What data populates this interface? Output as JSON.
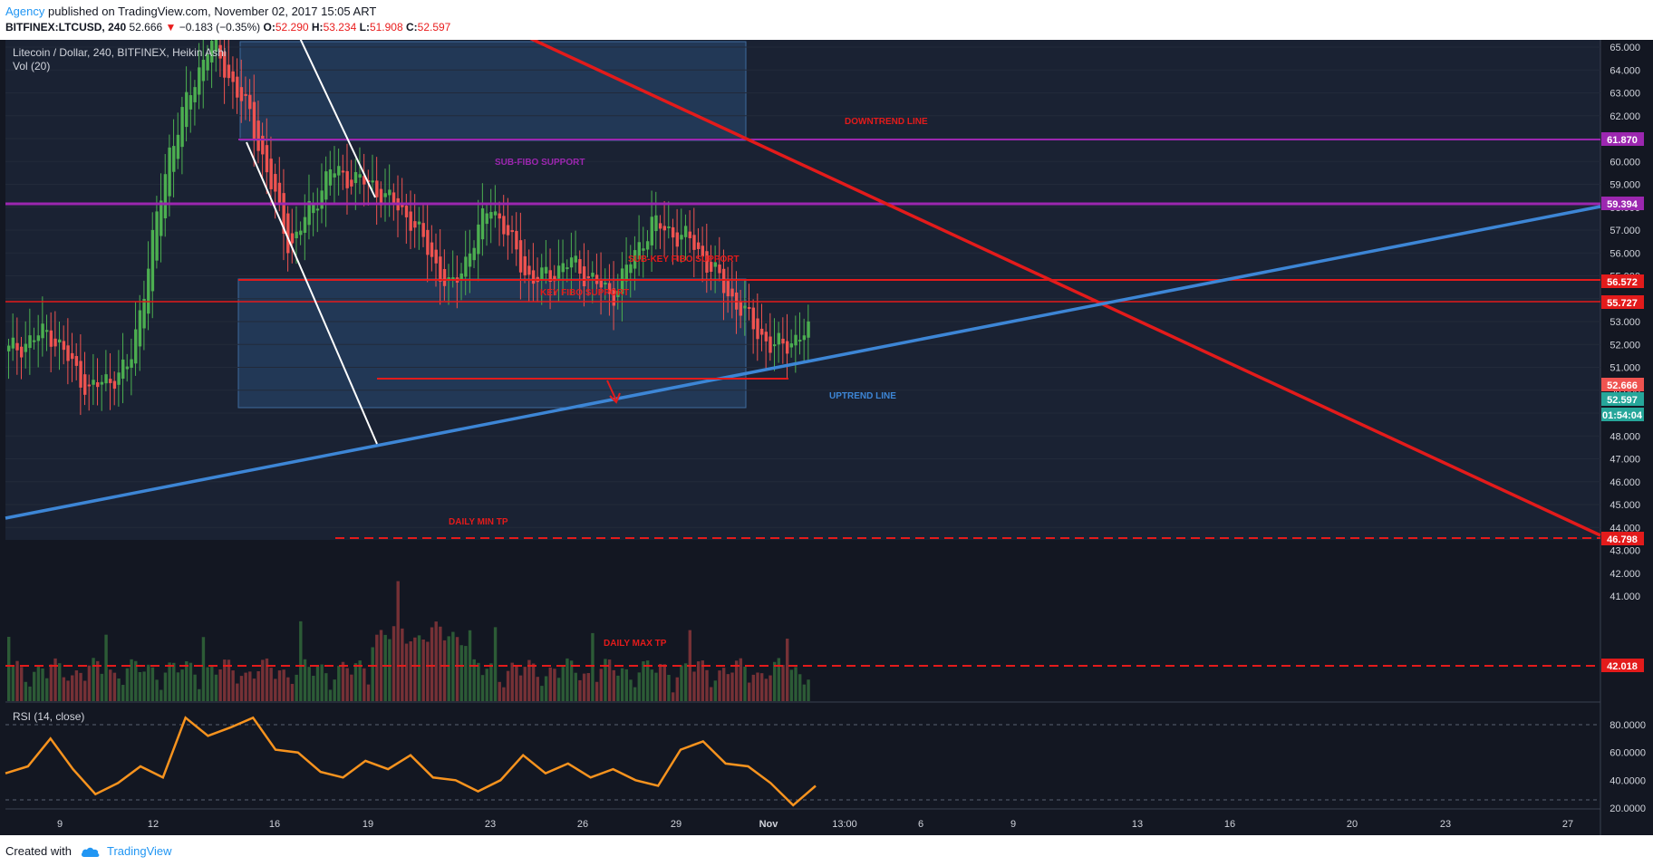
{
  "header": {
    "author": "Agency",
    "published": "published on TradingView.com, November 02, 2017 15:05 ART",
    "symbol": "BITFINEX:LTCUSD, 240",
    "last": "52.666",
    "change": "−0.183 (−0.35%)",
    "o_label": "O:",
    "o": "52.290",
    "h_label": "H:",
    "h": "53.234",
    "l_label": "L:",
    "l": "51.908",
    "c_label": "C:",
    "c": "52.597"
  },
  "chart": {
    "title": "Litecoin / Dollar, 240, BITFINEX, Heikin Ashi",
    "volume_label": "Vol (20)",
    "rsi_label": "RSI (14, close)",
    "annotations": {
      "downtrend": "DOWNTREND LINE",
      "sub_fibo": "SUB-FIBO SUPPORT",
      "sub_key_fibo": "SUB-KEY FIBO SUPPORT",
      "key_fibo": "KEY FIBO SUPPORT",
      "uptrend": "UPTREND LINE",
      "daily_min": "DAILY MIN TP",
      "daily_max": "DAILY MAX TP"
    },
    "price_ticks": [
      "65.000",
      "64.000",
      "63.000",
      "62.000",
      "61.000",
      "60.000",
      "59.000",
      "58.000",
      "57.000",
      "56.000",
      "55.000",
      "54.000",
      "53.000",
      "52.000",
      "51.000",
      "50.000",
      "49.000",
      "48.000",
      "47.000",
      "46.000",
      "45.000",
      "44.000",
      "43.000",
      "42.000",
      "41.000"
    ],
    "rsi_ticks": [
      "80.0000",
      "60.0000",
      "40.0000",
      "20.0000"
    ],
    "badges": [
      {
        "text": "61.870",
        "color": "#9c27b0"
      },
      {
        "text": "59.394",
        "color": "#9c27b0"
      },
      {
        "text": "56.572",
        "color": "#e31b1b"
      },
      {
        "text": "55.727",
        "color": "#e31b1b"
      },
      {
        "text": "52.666",
        "color": "#ef5350"
      },
      {
        "text": "52.597",
        "color": "#26a69a"
      },
      {
        "text": "01:54:04",
        "color": "#26a69a"
      },
      {
        "text": "46.798",
        "color": "#e31b1b"
      },
      {
        "text": "42.018",
        "color": "#e31b1b"
      }
    ],
    "x_ticks": [
      "9",
      "12",
      "16",
      "19",
      "23",
      "26",
      "29",
      "Nov",
      "13:00",
      "6",
      "9",
      "13",
      "16",
      "20",
      "23",
      "27"
    ]
  },
  "chart_data": {
    "type": "candlestick",
    "title": "Litecoin / Dollar, 240, BITFINEX, Heikin Ashi",
    "y_axis": {
      "min": 41,
      "max": 65.5
    },
    "horizontal_levels": [
      61.87,
      59.394,
      56.572,
      55.727,
      46.798,
      42.018
    ],
    "last_close": 52.597,
    "ohlc_last": {
      "open": 52.29,
      "high": 53.234,
      "low": 51.908,
      "close": 52.597
    },
    "close_path": [
      {
        "x": "6",
        "y": 51.7
      },
      {
        "x": "9",
        "y": 52.6
      },
      {
        "x": "10",
        "y": 50.0
      },
      {
        "x": "12",
        "y": 51.0
      },
      {
        "x": "14",
        "y": 60.5
      },
      {
        "x": "15",
        "y": 65.3
      },
      {
        "x": "17",
        "y": 62.0
      },
      {
        "x": "18",
        "y": 56.2
      },
      {
        "x": "19",
        "y": 59.6
      },
      {
        "x": "21",
        "y": 59.0
      },
      {
        "x": "22",
        "y": 57.5
      },
      {
        "x": "23",
        "y": 54.3
      },
      {
        "x": "24",
        "y": 58.2
      },
      {
        "x": "25",
        "y": 54.7
      },
      {
        "x": "26",
        "y": 55.6
      },
      {
        "x": "28",
        "y": 54.1
      },
      {
        "x": "30",
        "y": 57.3
      },
      {
        "x": "Oct 31",
        "y": 56.5
      },
      {
        "x": "Nov 1",
        "y": 54.0
      },
      {
        "x": "Nov 2",
        "y": 51.8
      },
      {
        "x": "Nov 2 15:00",
        "y": 52.6
      }
    ],
    "rsi_path": [
      45,
      50,
      70,
      48,
      30,
      38,
      50,
      42,
      85,
      72,
      78,
      85,
      62,
      60,
      46,
      42,
      54,
      48,
      58,
      42,
      40,
      32,
      40,
      58,
      45,
      52,
      42,
      48,
      40,
      36,
      62,
      68,
      52,
      50,
      38,
      22,
      36
    ],
    "rsi_ylim": [
      20,
      85
    ],
    "colors": {
      "up": "#4caf50",
      "down": "#ef5350",
      "uptrend": "#3d86d6",
      "downtrend": "#e31b1b",
      "fibo": "#9c27b0",
      "rsi": "#f7931e"
    }
  }
}
